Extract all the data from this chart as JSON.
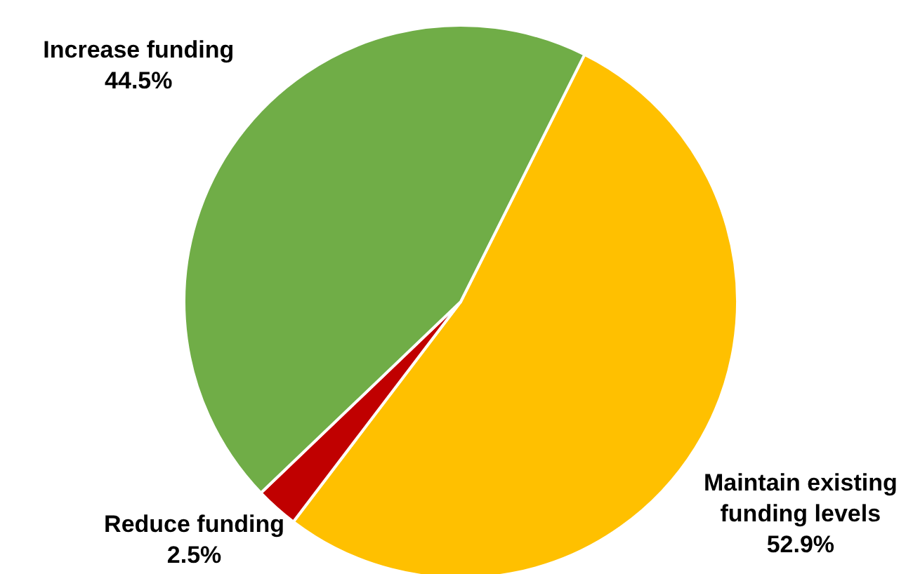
{
  "chart_data": {
    "type": "pie",
    "categories": [
      "Maintain existing funding levels",
      "Reduce funding",
      "Increase funding"
    ],
    "values": [
      52.9,
      2.5,
      44.5
    ],
    "colors": [
      "#ffc000",
      "#c00000",
      "#70ad47"
    ],
    "value_labels": [
      "52.9%",
      "2.5%",
      "44.5%"
    ],
    "legend": false
  }
}
